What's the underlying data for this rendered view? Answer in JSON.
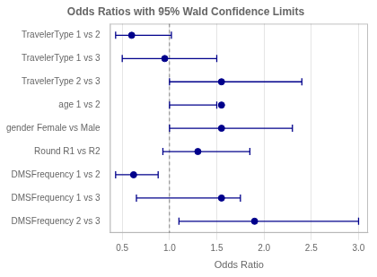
{
  "chart_data": {
    "type": "forest",
    "title": "Odds Ratios with 95% Wald Confidence Limits",
    "xlabel": "Odds Ratio",
    "categories": [
      "TravelerType 1 vs 2",
      "TravelerType 1 vs 3",
      "TravelerType 2 vs 3",
      "age 1 vs 2",
      "gender Female vs Male",
      "Round R1 vs R2",
      "DMSFrequency 1 vs 2",
      "DMSFrequency 1 vs 3",
      "DMSFrequency 2 vs 3"
    ],
    "values": [
      0.6,
      0.95,
      1.55,
      1.55,
      1.55,
      1.3,
      0.62,
      1.55,
      1.9
    ],
    "lower": [
      0.43,
      0.5,
      1.0,
      1.0,
      1.0,
      0.93,
      0.43,
      0.65,
      1.1
    ],
    "upper": [
      1.02,
      1.5,
      2.4,
      1.5,
      2.3,
      1.85,
      0.88,
      1.75,
      3.0
    ],
    "color": "#00008B",
    "reference_line": 1.0,
    "xlim": [
      0.37,
      3.1
    ],
    "xticks": [
      0.5,
      {
        "value": 1.0,
        "label": "1.0"
      },
      1.5,
      {
        "value": 2.0,
        "label": "2.0"
      },
      2.5,
      {
        "value": 3.0,
        "label": "3.0"
      }
    ],
    "grid": true
  }
}
